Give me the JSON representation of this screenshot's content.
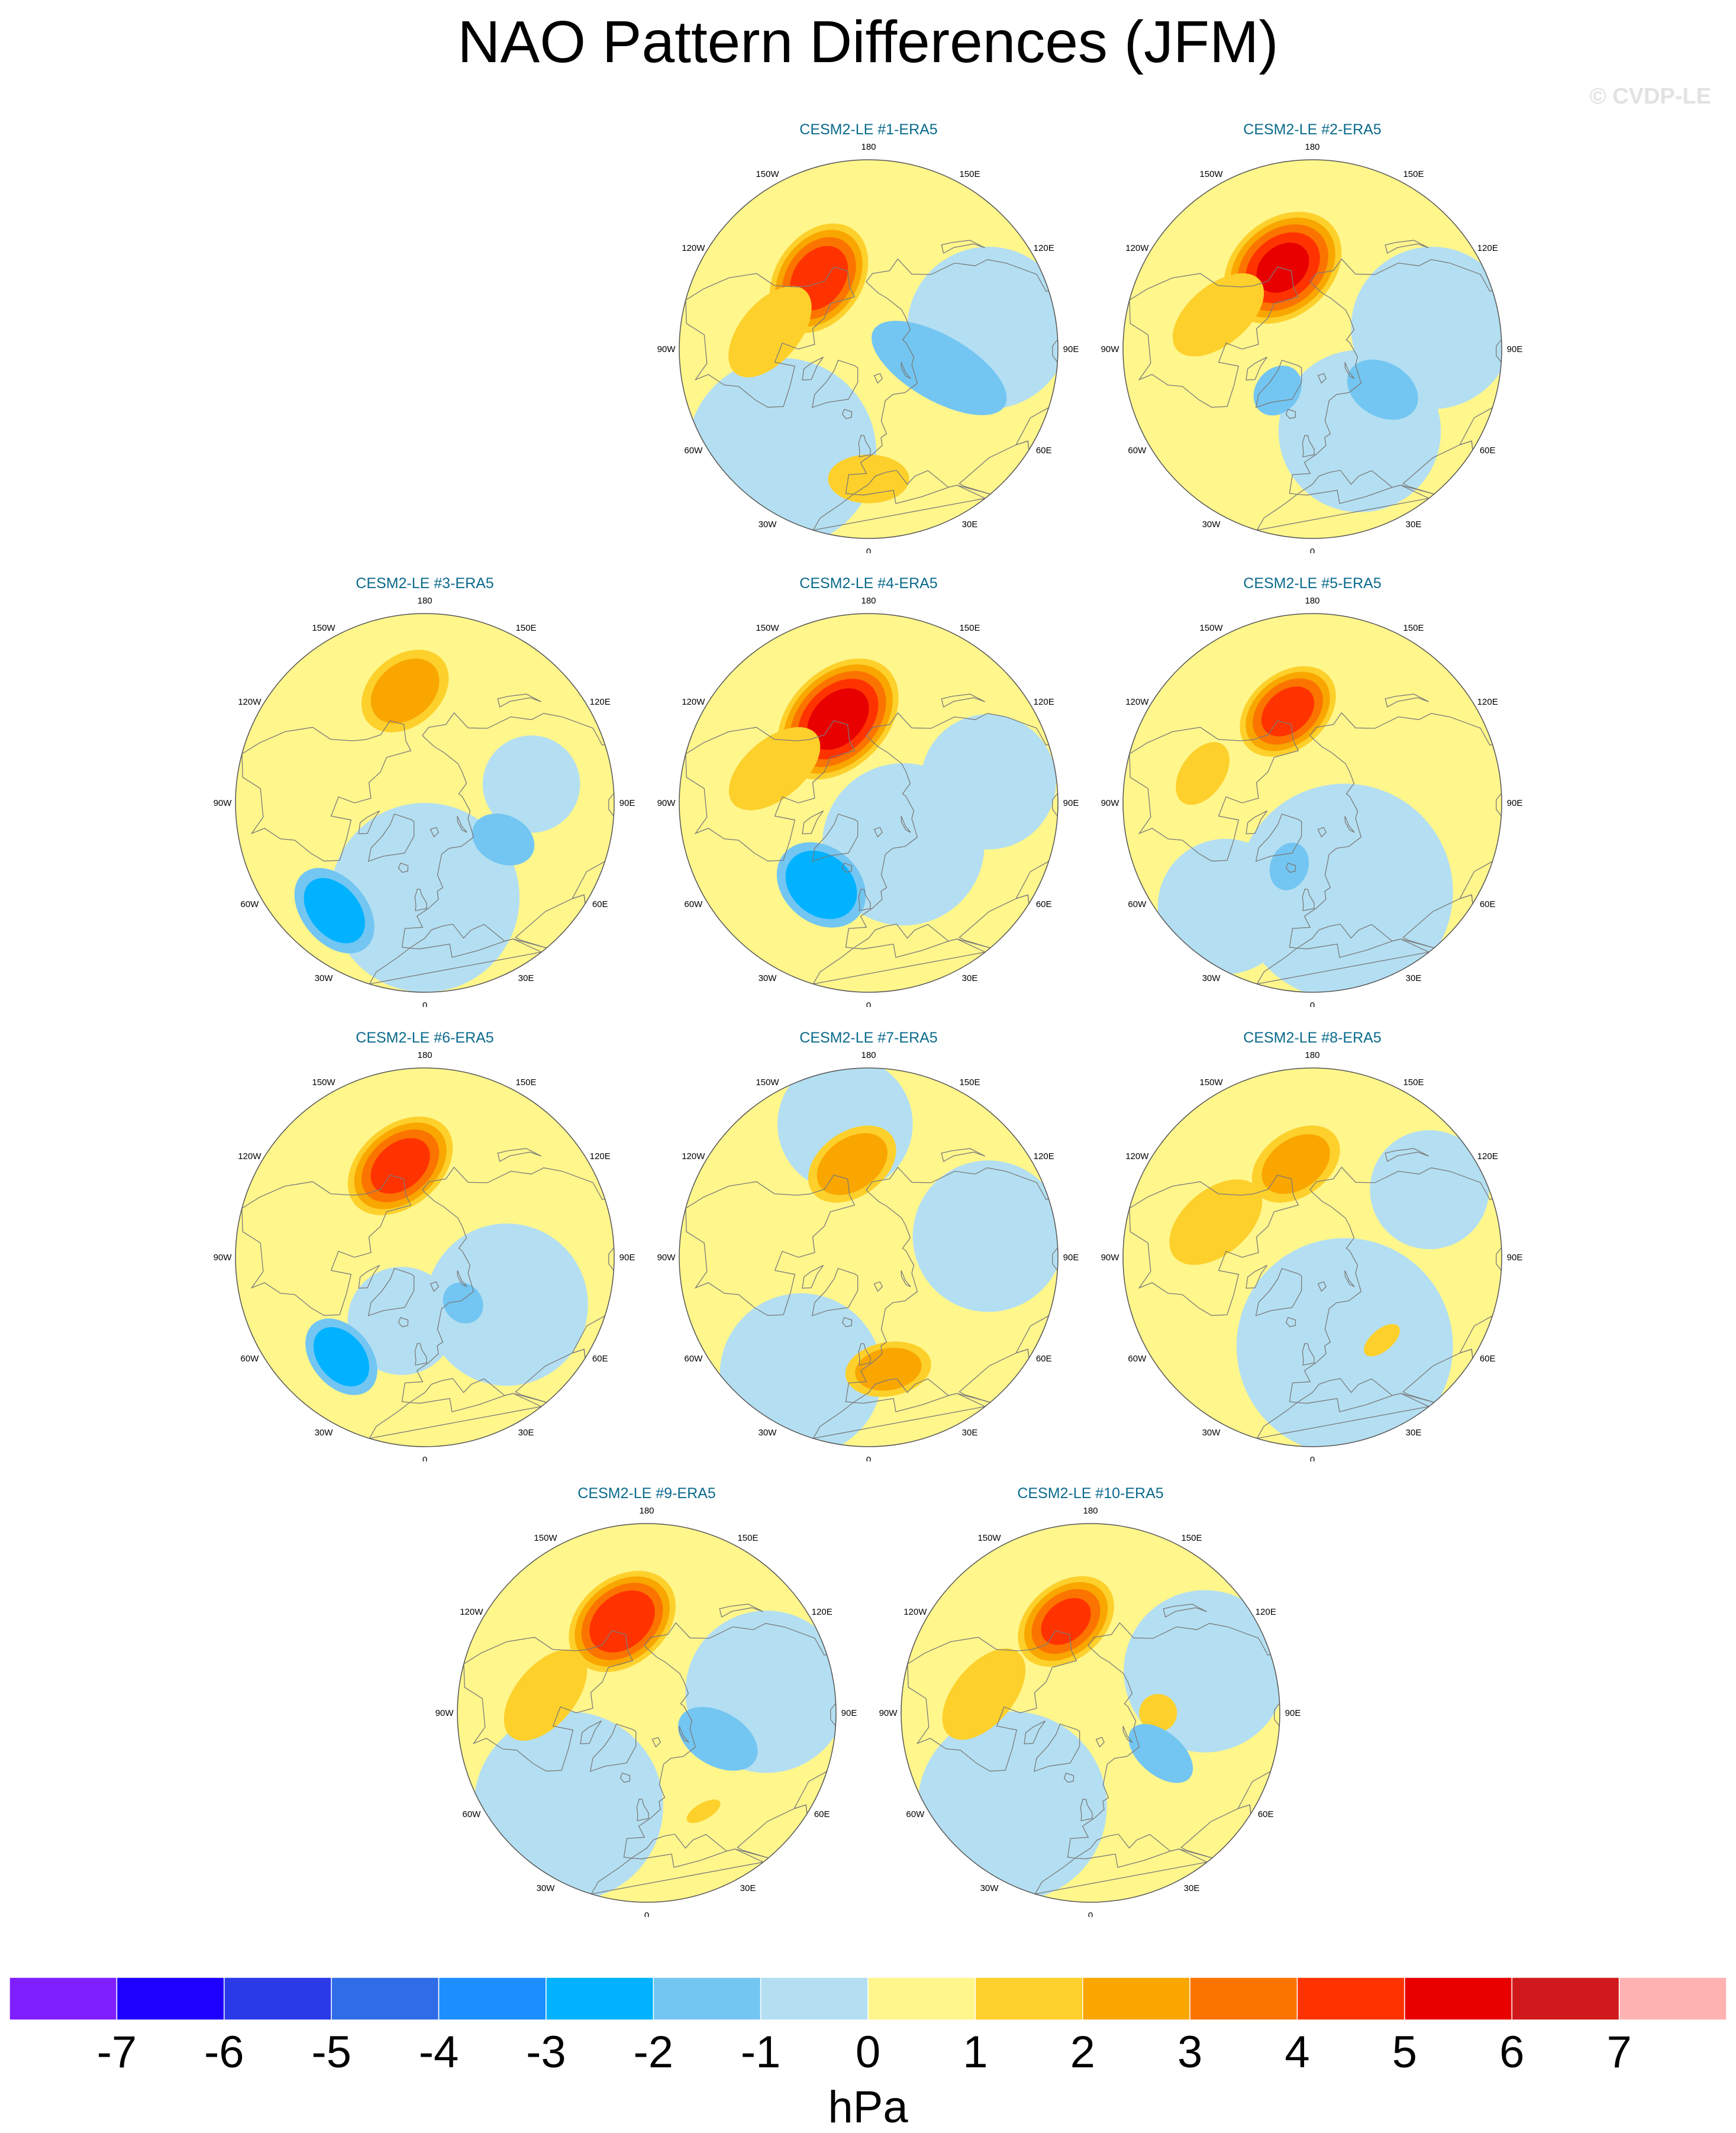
{
  "title": "NAO Pattern Differences (JFM)",
  "watermark": "© CVDP-LE",
  "lon_labels": [
    "180",
    "150E",
    "120E",
    "90E",
    "60E",
    "30E",
    "0",
    "30W",
    "60W",
    "90W",
    "120W",
    "150W"
  ],
  "panels": [
    {
      "title": "CESM2-LE #1-ERA5",
      "grid": [
        1,
        2
      ],
      "features": [
        {
          "lat": 58,
          "lon": -145,
          "peak": 4.6,
          "rx": 22,
          "ry": 16,
          "rot": -20
        },
        {
          "lat": 63,
          "lon": 75,
          "peak": -1.6,
          "rx": 12,
          "ry": 28,
          "rot": 15
        },
        {
          "lat": 53,
          "lon": -100,
          "peak": 1.3,
          "rx": 20,
          "ry": 11,
          "rot": 30
        },
        {
          "lat": 42,
          "lon": 0,
          "peak": 1.3,
          "rx": 15,
          "ry": 9,
          "rot": 0
        }
      ],
      "background": [
        {
          "lat": 40,
          "lon": -40,
          "val": -0.7,
          "r": 35
        },
        {
          "lat": 45,
          "lon": 100,
          "val": -0.6,
          "r": 30
        }
      ]
    },
    {
      "title": "CESM2-LE #2-ERA5",
      "grid": [
        1,
        3
      ],
      "features": [
        {
          "lat": 58,
          "lon": -160,
          "peak": 5.0,
          "rx": 24,
          "ry": 18,
          "rot": -20
        },
        {
          "lat": 60,
          "lon": 60,
          "peak": -1.3,
          "rx": 10,
          "ry": 14,
          "rot": 0
        },
        {
          "lat": 70,
          "lon": -40,
          "peak": -1.1,
          "rx": 8,
          "ry": 10,
          "rot": 0
        },
        {
          "lat": 53,
          "lon": -110,
          "peak": 1.4,
          "rx": 20,
          "ry": 11,
          "rot": 30
        }
      ],
      "background": [
        {
          "lat": 55,
          "lon": 30,
          "val": -0.7,
          "r": 30
        },
        {
          "lat": 45,
          "lon": 100,
          "val": -0.6,
          "r": 30
        }
      ]
    },
    {
      "title": "CESM2-LE #3-ERA5",
      "grid": [
        2,
        1
      ],
      "features": [
        {
          "lat": 48,
          "lon": -170,
          "peak": 2.6,
          "rx": 18,
          "ry": 13,
          "rot": -30
        },
        {
          "lat": 38,
          "lon": -40,
          "peak": -2.4,
          "rx": 18,
          "ry": 12,
          "rot": 10
        },
        {
          "lat": 58,
          "lon": 65,
          "peak": -1.7,
          "rx": 9,
          "ry": 12,
          "rot": 0
        }
      ],
      "background": [
        {
          "lat": 55,
          "lon": 0,
          "val": -0.7,
          "r": 35
        },
        {
          "lat": 50,
          "lon": 100,
          "val": -0.6,
          "r": 18
        }
      ]
    },
    {
      "title": "CESM2-LE #4-ERA5",
      "grid": [
        2,
        2
      ],
      "features": [
        {
          "lat": 57,
          "lon": -160,
          "peak": 5.4,
          "rx": 26,
          "ry": 18,
          "rot": -25
        },
        {
          "lat": 55,
          "lon": -30,
          "peak": -2.8,
          "rx": 18,
          "ry": 14,
          "rot": 10
        },
        {
          "lat": 53,
          "lon": -110,
          "peak": 1.5,
          "rx": 20,
          "ry": 11,
          "rot": 30
        }
      ],
      "background": [
        {
          "lat": 70,
          "lon": 40,
          "val": -0.7,
          "r": 30
        },
        {
          "lat": 45,
          "lon": 100,
          "val": -0.7,
          "r": 25
        }
      ]
    },
    {
      "title": "CESM2-LE #5-ERA5",
      "grid": [
        2,
        3
      ],
      "features": [
        {
          "lat": 55,
          "lon": -165,
          "peak": 4.3,
          "rx": 20,
          "ry": 14,
          "rot": -25
        },
        {
          "lat": 65,
          "lon": -20,
          "peak": -1.3,
          "rx": 7,
          "ry": 9,
          "rot": 0
        },
        {
          "lat": 48,
          "lon": -105,
          "peak": 1.4,
          "rx": 13,
          "ry": 8,
          "rot": 20
        }
      ],
      "background": [
        {
          "lat": 55,
          "lon": 20,
          "val": -0.7,
          "r": 40
        },
        {
          "lat": 40,
          "lon": -40,
          "val": -0.6,
          "r": 25
        }
      ]
    },
    {
      "title": "CESM2-LE #6-ERA5",
      "grid": [
        3,
        1
      ],
      "features": [
        {
          "lat": 55,
          "lon": -165,
          "peak": 4.4,
          "rx": 22,
          "ry": 15,
          "rot": -25
        },
        {
          "lat": 42,
          "lon": -40,
          "peak": -2.5,
          "rx": 16,
          "ry": 11,
          "rot": 10
        },
        {
          "lat": 68,
          "lon": 40,
          "peak": -1.2,
          "rx": 7,
          "ry": 8,
          "rot": 0
        }
      ],
      "background": [
        {
          "lat": 55,
          "lon": 60,
          "val": -0.7,
          "r": 30
        },
        {
          "lat": 65,
          "lon": -20,
          "val": -0.6,
          "r": 20
        }
      ]
    },
    {
      "title": "CESM2-LE #7-ERA5",
      "grid": [
        3,
        2
      ],
      "features": [
        {
          "lat": 55,
          "lon": -170,
          "peak": 2.8,
          "rx": 18,
          "ry": 12,
          "rot": -25
        },
        {
          "lat": 48,
          "lon": 10,
          "peak": 2.5,
          "rx": 16,
          "ry": 10,
          "rot": 0
        }
      ],
      "background": [
        {
          "lat": 40,
          "lon": -30,
          "val": -0.7,
          "r": 30
        },
        {
          "lat": 40,
          "lon": -170,
          "val": -0.6,
          "r": 25
        },
        {
          "lat": 45,
          "lon": 100,
          "val": -0.6,
          "r": 28
        }
      ]
    },
    {
      "title": "CESM2-LE #8-ERA5",
      "grid": [
        3,
        3
      ],
      "features": [
        {
          "lat": 55,
          "lon": -170,
          "peak": 2.5,
          "rx": 18,
          "ry": 12,
          "rot": -25
        },
        {
          "lat": 52,
          "lon": -110,
          "peak": 1.4,
          "rx": 20,
          "ry": 12,
          "rot": 30
        },
        {
          "lat": 50,
          "lon": 40,
          "peak": 1.2,
          "rx": 8,
          "ry": 4,
          "rot": 0
        }
      ],
      "background": [
        {
          "lat": 55,
          "lon": 20,
          "val": -0.7,
          "r": 40
        },
        {
          "lat": 40,
          "lon": 120,
          "val": -0.6,
          "r": 22
        }
      ]
    },
    {
      "title": "CESM2-LE #9-ERA5",
      "grid": [
        4,
        1.5
      ],
      "features": [
        {
          "lat": 55,
          "lon": -165,
          "peak": 4.8,
          "rx": 22,
          "ry": 16,
          "rot": -25
        },
        {
          "lat": 62,
          "lon": 70,
          "peak": -1.4,
          "rx": 10,
          "ry": 16,
          "rot": 10
        },
        {
          "lat": 52,
          "lon": -100,
          "peak": 1.4,
          "rx": 20,
          "ry": 11,
          "rot": 30
        },
        {
          "lat": 48,
          "lon": 30,
          "peak": 1.2,
          "rx": 7,
          "ry": 3,
          "rot": 0
        }
      ],
      "background": [
        {
          "lat": 45,
          "lon": -40,
          "val": -0.7,
          "r": 35
        },
        {
          "lat": 45,
          "lon": 100,
          "val": -0.6,
          "r": 30
        }
      ]
    },
    {
      "title": "CESM2-LE #10-ERA5",
      "grid": [
        4,
        2.5
      ],
      "features": [
        {
          "lat": 55,
          "lon": -165,
          "peak": 4.1,
          "rx": 20,
          "ry": 14,
          "rot": -25
        },
        {
          "lat": 60,
          "lon": 60,
          "peak": -1.4,
          "rx": 8,
          "ry": 14,
          "rot": 10
        },
        {
          "lat": 50,
          "lon": -100,
          "peak": 1.4,
          "rx": 20,
          "ry": 11,
          "rot": 30
        }
      ],
      "background": [
        {
          "lat": 45,
          "lon": -40,
          "val": -0.7,
          "r": 35
        },
        {
          "lat": 45,
          "lon": 110,
          "val": -0.7,
          "r": 30
        },
        {
          "lat": 65,
          "lon": 90,
          "val": 1.0,
          "r": 7
        }
      ]
    }
  ],
  "colorbar": {
    "levels": [
      -7,
      -6,
      -5,
      -4,
      -3,
      -2,
      -1,
      0,
      1,
      2,
      3,
      4,
      5,
      6,
      7
    ],
    "colors": [
      "#7f1fff",
      "#1e00ff",
      "#2a3ae8",
      "#2f6ce8",
      "#1d8eff",
      "#00b2ff",
      "#73c6f2",
      "#b4dff2",
      "#fff68c",
      "#fdd02b",
      "#f9a600",
      "#fb7400",
      "#ff3300",
      "#e80000",
      "#d0191c",
      "#ffb2b2"
    ],
    "tick_labels": [
      "-7",
      "-6",
      "-5",
      "-4",
      "-3",
      "-2",
      "-1",
      "0",
      "1",
      "2",
      "3",
      "4",
      "5",
      "6",
      "7"
    ],
    "units": "hPa"
  }
}
